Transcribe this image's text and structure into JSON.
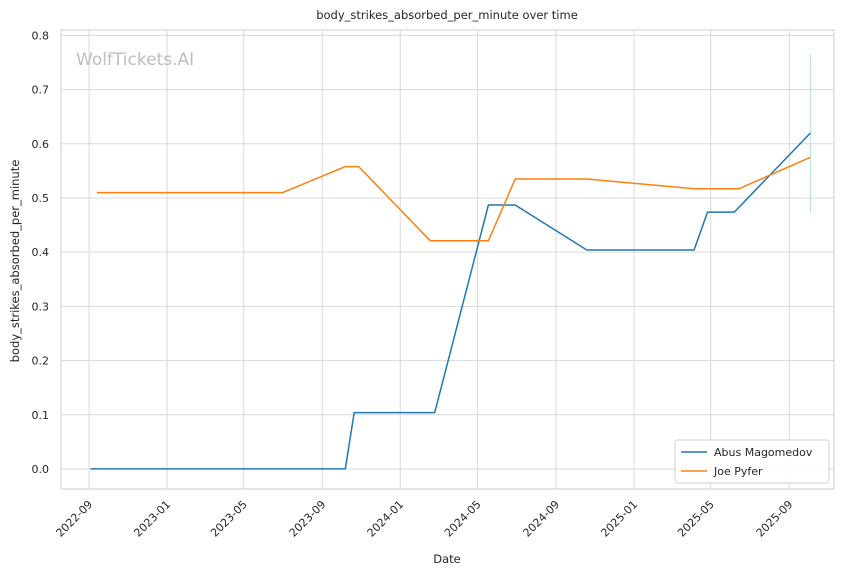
{
  "chart_data": {
    "type": "line",
    "title": "body_strikes_absorbed_per_minute over time",
    "xlabel": "Date",
    "ylabel": "body_strikes_absorbed_per_minute",
    "watermark": "WolfTickets.AI",
    "ylim": [
      -0.037,
      0.81
    ],
    "xlim": [
      "2022-07-19",
      "2025-11-10"
    ],
    "yticks": [
      "0.0",
      "0.1",
      "0.2",
      "0.3",
      "0.4",
      "0.5",
      "0.6",
      "0.7",
      "0.8"
    ],
    "xticks": [
      "2022-09",
      "2023-01",
      "2023-05",
      "2023-09",
      "2024-01",
      "2024-05",
      "2024-09",
      "2025-01",
      "2025-05",
      "2025-09"
    ],
    "grid": true,
    "legend_position": "bottom-right",
    "series": [
      {
        "name": "Abus Magomedov",
        "color": "#1f77b4",
        "points": [
          [
            "2022-09-03",
            0.0
          ],
          [
            "2023-10-07",
            0.0
          ],
          [
            "2023-10-21",
            0.104
          ],
          [
            "2024-02-24",
            0.104
          ],
          [
            "2024-05-18",
            0.487
          ],
          [
            "2024-06-29",
            0.487
          ],
          [
            "2024-10-19",
            0.404
          ],
          [
            "2025-04-05",
            0.404
          ],
          [
            "2025-04-26",
            0.474
          ],
          [
            "2025-06-07",
            0.474
          ],
          [
            "2025-10-04",
            0.62
          ]
        ]
      },
      {
        "name": "Joe Pyfer",
        "color": "#ff7f0e",
        "points": [
          [
            "2022-09-13",
            0.51
          ],
          [
            "2023-07-01",
            0.51
          ],
          [
            "2023-10-07",
            0.558
          ],
          [
            "2023-10-28",
            0.558
          ],
          [
            "2024-02-17",
            0.421
          ],
          [
            "2024-05-18",
            0.421
          ],
          [
            "2024-06-29",
            0.535
          ],
          [
            "2024-10-19",
            0.535
          ],
          [
            "2025-04-05",
            0.517
          ],
          [
            "2025-06-14",
            0.517
          ],
          [
            "2025-10-04",
            0.575
          ]
        ]
      }
    ],
    "error_band": {
      "date": "2025-10-04",
      "range": [
        0.473,
        0.766
      ],
      "color": "#7fd3c4"
    }
  }
}
